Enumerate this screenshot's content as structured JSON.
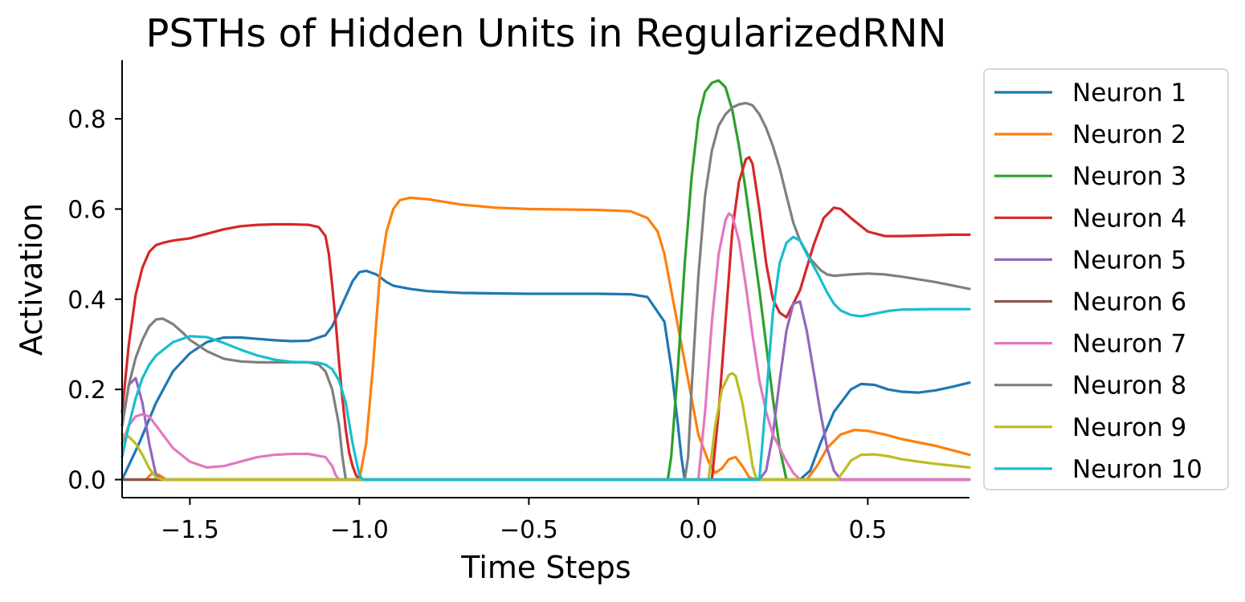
{
  "chart_data": {
    "type": "line",
    "title": "PSTHs of Hidden Units in RegularizedRNN",
    "xlabel": "Time Steps",
    "ylabel": "Activation",
    "xlim": [
      -1.7,
      0.8
    ],
    "ylim": [
      -0.04,
      0.93
    ],
    "grid": false,
    "legend_position": "outside-right",
    "x_ticks": [
      -1.5,
      -1.0,
      -0.5,
      0.0,
      0.5
    ],
    "x_tick_labels": [
      "−1.5",
      "−1.0",
      "−0.5",
      "0.0",
      "0.5"
    ],
    "y_ticks": [
      0.0,
      0.2,
      0.4,
      0.6,
      0.8
    ],
    "y_tick_labels": [
      "0.0",
      "0.2",
      "0.4",
      "0.6",
      "0.8"
    ],
    "series": [
      {
        "name": "Neuron 1",
        "color": "#1f77b4",
        "x": [
          -1.7,
          -1.65,
          -1.6,
          -1.55,
          -1.5,
          -1.45,
          -1.4,
          -1.35,
          -1.3,
          -1.25,
          -1.2,
          -1.15,
          -1.1,
          -1.08,
          -1.05,
          -1.02,
          -1.0,
          -0.98,
          -0.95,
          -0.92,
          -0.9,
          -0.85,
          -0.8,
          -0.7,
          -0.6,
          -0.5,
          -0.4,
          -0.3,
          -0.2,
          -0.15,
          -0.1,
          -0.08,
          -0.06,
          -0.05,
          -0.04,
          0.3,
          0.33,
          0.36,
          0.4,
          0.45,
          0.48,
          0.52,
          0.56,
          0.6,
          0.65,
          0.7,
          0.75,
          0.8
        ],
        "y": [
          0.0,
          0.08,
          0.17,
          0.24,
          0.28,
          0.305,
          0.315,
          0.315,
          0.312,
          0.309,
          0.307,
          0.308,
          0.32,
          0.34,
          0.39,
          0.44,
          0.46,
          0.463,
          0.455,
          0.438,
          0.43,
          0.423,
          0.418,
          0.414,
          0.413,
          0.412,
          0.412,
          0.412,
          0.411,
          0.405,
          0.35,
          0.25,
          0.12,
          0.05,
          0.0,
          0.0,
          0.02,
          0.08,
          0.15,
          0.2,
          0.212,
          0.21,
          0.2,
          0.195,
          0.193,
          0.198,
          0.206,
          0.215
        ]
      },
      {
        "name": "Neuron 2",
        "color": "#ff7f0e",
        "x": [
          -1.7,
          -1.63,
          -1.61,
          -1.59,
          -1.57,
          -1.0,
          -0.98,
          -0.96,
          -0.94,
          -0.92,
          -0.9,
          -0.88,
          -0.85,
          -0.8,
          -0.7,
          -0.6,
          -0.5,
          -0.4,
          -0.3,
          -0.2,
          -0.15,
          -0.12,
          -0.1,
          -0.08,
          -0.05,
          -0.02,
          0.0,
          0.03,
          0.05,
          0.07,
          0.09,
          0.11,
          0.13,
          0.15,
          0.17,
          0.2,
          0.32,
          0.35,
          0.38,
          0.42,
          0.46,
          0.5,
          0.55,
          0.6,
          0.7,
          0.8
        ],
        "y": [
          0.0,
          0.0,
          0.015,
          0.01,
          0.0,
          0.0,
          0.08,
          0.25,
          0.45,
          0.55,
          0.6,
          0.62,
          0.625,
          0.622,
          0.61,
          0.603,
          0.6,
          0.599,
          0.598,
          0.595,
          0.58,
          0.55,
          0.5,
          0.42,
          0.3,
          0.18,
          0.1,
          0.04,
          0.015,
          0.025,
          0.045,
          0.05,
          0.03,
          0.005,
          0.0,
          0.0,
          0.0,
          0.03,
          0.07,
          0.1,
          0.11,
          0.108,
          0.1,
          0.09,
          0.075,
          0.055
        ]
      },
      {
        "name": "Neuron 3",
        "color": "#2ca02c",
        "x": [
          -1.7,
          -0.09,
          -0.08,
          -0.06,
          -0.04,
          -0.02,
          0.0,
          0.02,
          0.04,
          0.06,
          0.08,
          0.1,
          0.12,
          0.14,
          0.16,
          0.18,
          0.2,
          0.22,
          0.24,
          0.26,
          0.28,
          0.8
        ],
        "y": [
          0.0,
          0.0,
          0.05,
          0.25,
          0.48,
          0.67,
          0.8,
          0.86,
          0.88,
          0.885,
          0.87,
          0.82,
          0.74,
          0.64,
          0.53,
          0.42,
          0.3,
          0.18,
          0.07,
          0.0,
          0.0,
          0.0
        ]
      },
      {
        "name": "Neuron 4",
        "color": "#d62728",
        "x": [
          -1.7,
          -1.68,
          -1.66,
          -1.64,
          -1.62,
          -1.6,
          -1.58,
          -1.55,
          -1.5,
          -1.45,
          -1.4,
          -1.35,
          -1.3,
          -1.25,
          -1.2,
          -1.15,
          -1.12,
          -1.1,
          -1.09,
          -1.08,
          -1.07,
          -1.06,
          -1.05,
          -1.04,
          -1.03,
          -1.02,
          -1.01,
          -1.0,
          0.04,
          0.06,
          0.08,
          0.1,
          0.12,
          0.14,
          0.15,
          0.16,
          0.18,
          0.2,
          0.22,
          0.24,
          0.26,
          0.3,
          0.34,
          0.37,
          0.4,
          0.42,
          0.45,
          0.5,
          0.55,
          0.6,
          0.65,
          0.7,
          0.75,
          0.8
        ],
        "y": [
          0.15,
          0.3,
          0.41,
          0.47,
          0.505,
          0.52,
          0.525,
          0.53,
          0.535,
          0.545,
          0.555,
          0.562,
          0.565,
          0.566,
          0.566,
          0.565,
          0.56,
          0.54,
          0.5,
          0.43,
          0.35,
          0.26,
          0.18,
          0.11,
          0.06,
          0.03,
          0.01,
          0.0,
          0.0,
          0.15,
          0.35,
          0.55,
          0.66,
          0.71,
          0.715,
          0.7,
          0.6,
          0.48,
          0.4,
          0.37,
          0.36,
          0.42,
          0.52,
          0.58,
          0.603,
          0.6,
          0.58,
          0.55,
          0.54,
          0.54,
          0.541,
          0.542,
          0.543,
          0.543
        ]
      },
      {
        "name": "Neuron 5",
        "color": "#9467bd",
        "x": [
          -1.7,
          -1.68,
          -1.66,
          -1.64,
          -1.62,
          -1.6,
          -1.58,
          0.18,
          0.2,
          0.22,
          0.24,
          0.26,
          0.28,
          0.3,
          0.32,
          0.34,
          0.36,
          0.38,
          0.4,
          0.42,
          0.8
        ],
        "y": [
          0.12,
          0.21,
          0.225,
          0.17,
          0.08,
          0.01,
          0.0,
          0.0,
          0.02,
          0.1,
          0.22,
          0.33,
          0.39,
          0.395,
          0.33,
          0.24,
          0.15,
          0.07,
          0.02,
          0.0,
          0.0
        ]
      },
      {
        "name": "Neuron 6",
        "color": "#8c564b",
        "x": [
          -1.7,
          0.8
        ],
        "y": [
          0.0,
          0.0
        ]
      },
      {
        "name": "Neuron 7",
        "color": "#e377c2",
        "x": [
          -1.7,
          -1.68,
          -1.66,
          -1.64,
          -1.62,
          -1.6,
          -1.55,
          -1.5,
          -1.45,
          -1.4,
          -1.35,
          -1.3,
          -1.25,
          -1.2,
          -1.15,
          -1.1,
          -1.08,
          -1.07,
          -1.06,
          0.0,
          0.02,
          0.04,
          0.06,
          0.08,
          0.09,
          0.1,
          0.12,
          0.14,
          0.16,
          0.18,
          0.2,
          0.22,
          0.24,
          0.26,
          0.28,
          0.3,
          0.8
        ],
        "y": [
          0.08,
          0.12,
          0.14,
          0.145,
          0.14,
          0.12,
          0.07,
          0.04,
          0.027,
          0.03,
          0.04,
          0.05,
          0.055,
          0.057,
          0.057,
          0.05,
          0.03,
          0.01,
          0.0,
          0.0,
          0.15,
          0.35,
          0.5,
          0.575,
          0.59,
          0.585,
          0.53,
          0.43,
          0.32,
          0.22,
          0.15,
          0.1,
          0.07,
          0.04,
          0.015,
          0.0,
          0.0
        ]
      },
      {
        "name": "Neuron 8",
        "color": "#7f7f7f",
        "x": [
          -1.7,
          -1.68,
          -1.66,
          -1.64,
          -1.62,
          -1.6,
          -1.58,
          -1.55,
          -1.52,
          -1.5,
          -1.45,
          -1.4,
          -1.35,
          -1.3,
          -1.25,
          -1.2,
          -1.15,
          -1.12,
          -1.1,
          -1.08,
          -1.06,
          -1.05,
          -1.04,
          -0.04,
          -0.03,
          -0.02,
          0.0,
          0.02,
          0.04,
          0.06,
          0.08,
          0.1,
          0.12,
          0.14,
          0.16,
          0.18,
          0.2,
          0.22,
          0.24,
          0.26,
          0.28,
          0.3,
          0.33,
          0.36,
          0.38,
          0.4,
          0.45,
          0.5,
          0.55,
          0.6,
          0.7,
          0.8
        ],
        "y": [
          0.12,
          0.21,
          0.27,
          0.31,
          0.34,
          0.355,
          0.357,
          0.345,
          0.325,
          0.31,
          0.285,
          0.268,
          0.262,
          0.26,
          0.26,
          0.26,
          0.26,
          0.255,
          0.24,
          0.2,
          0.12,
          0.05,
          0.0,
          0.0,
          0.05,
          0.2,
          0.45,
          0.63,
          0.73,
          0.785,
          0.81,
          0.825,
          0.832,
          0.835,
          0.83,
          0.81,
          0.78,
          0.74,
          0.69,
          0.63,
          0.57,
          0.53,
          0.49,
          0.465,
          0.455,
          0.452,
          0.455,
          0.457,
          0.455,
          0.45,
          0.438,
          0.423
        ]
      },
      {
        "name": "Neuron 9",
        "color": "#bcbd22",
        "x": [
          -1.7,
          -1.68,
          -1.66,
          -1.64,
          -1.62,
          -1.6,
          -1.58,
          0.03,
          0.05,
          0.07,
          0.09,
          0.1,
          0.11,
          0.13,
          0.15,
          0.16,
          0.17,
          0.18,
          0.41,
          0.43,
          0.45,
          0.48,
          0.52,
          0.56,
          0.6,
          0.7,
          0.8
        ],
        "y": [
          0.1,
          0.095,
          0.08,
          0.055,
          0.025,
          0.005,
          0.0,
          0.0,
          0.12,
          0.2,
          0.232,
          0.236,
          0.23,
          0.17,
          0.08,
          0.03,
          0.005,
          0.0,
          0.0,
          0.02,
          0.042,
          0.055,
          0.056,
          0.052,
          0.045,
          0.035,
          0.027
        ]
      },
      {
        "name": "Neuron 10",
        "color": "#17becf",
        "x": [
          -1.7,
          -1.68,
          -1.66,
          -1.64,
          -1.62,
          -1.6,
          -1.55,
          -1.5,
          -1.45,
          -1.4,
          -1.35,
          -1.3,
          -1.25,
          -1.2,
          -1.15,
          -1.12,
          -1.1,
          -1.08,
          -1.06,
          -1.04,
          -1.02,
          -1.0,
          -0.99,
          0.18,
          0.2,
          0.22,
          0.24,
          0.26,
          0.28,
          0.3,
          0.32,
          0.35,
          0.38,
          0.4,
          0.42,
          0.45,
          0.48,
          0.52,
          0.56,
          0.6,
          0.7,
          0.8
        ],
        "y": [
          0.05,
          0.12,
          0.18,
          0.225,
          0.255,
          0.275,
          0.305,
          0.318,
          0.316,
          0.303,
          0.288,
          0.275,
          0.266,
          0.261,
          0.26,
          0.259,
          0.255,
          0.245,
          0.22,
          0.17,
          0.08,
          0.01,
          0.0,
          0.0,
          0.18,
          0.37,
          0.48,
          0.525,
          0.538,
          0.53,
          0.5,
          0.46,
          0.415,
          0.39,
          0.375,
          0.365,
          0.362,
          0.368,
          0.374,
          0.377,
          0.378,
          0.378
        ]
      }
    ]
  }
}
